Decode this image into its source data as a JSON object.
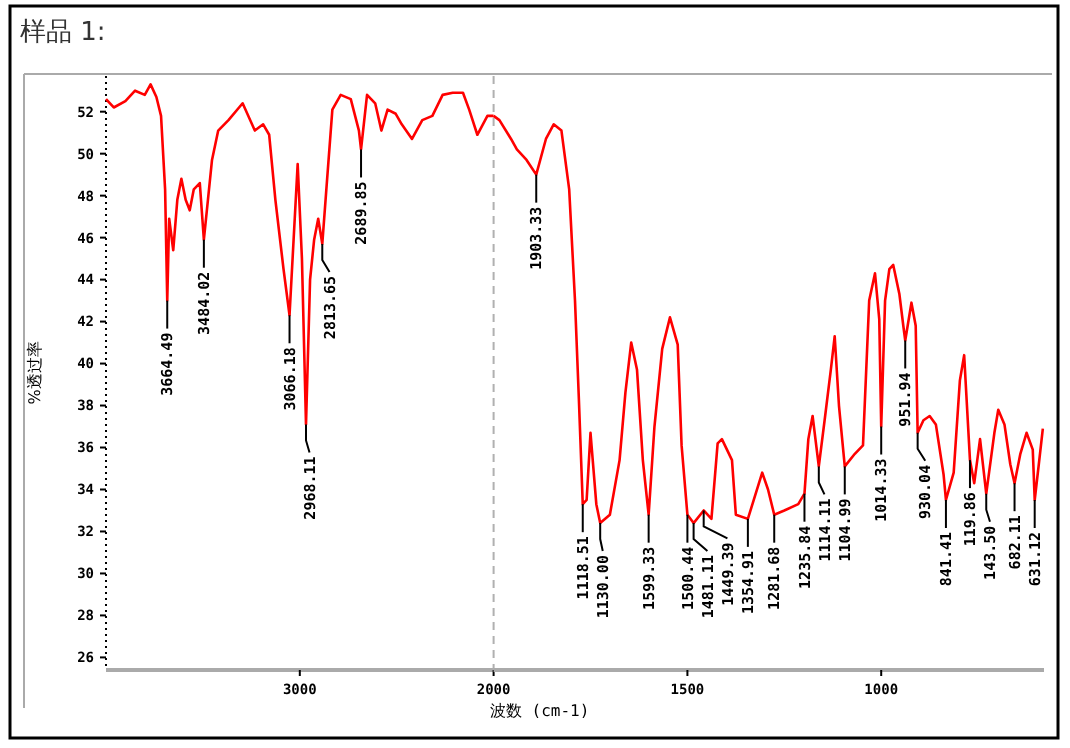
{
  "chart_data": [
    {
      "type": "line",
      "title": "样品 1:",
      "ylabel": "%透过率",
      "xlim": [
        4000,
        2000
      ],
      "xticks": [
        3000,
        2000
      ],
      "ylim": [
        25.4,
        53.7
      ],
      "yticks": [
        26,
        28,
        30,
        32,
        34,
        36,
        38,
        40,
        42,
        44,
        46,
        48,
        50,
        52
      ],
      "series": [
        {
          "color": "#ff0000",
          "x": [
            4000,
            3960,
            3900,
            3850,
            3800,
            3770,
            3740,
            3716,
            3695,
            3684,
            3674,
            3653,
            3632,
            3611,
            3589,
            3568,
            3547,
            3516,
            3495,
            3474,
            3453,
            3421,
            3368,
            3295,
            3232,
            3189,
            3158,
            3126,
            3084,
            3053,
            3032,
            3011,
            2989,
            2968,
            2947,
            2926,
            2905,
            2884,
            2863,
            2832,
            2789,
            2737,
            2695,
            2684,
            2653,
            2611,
            2579,
            2547,
            2505,
            2474,
            2421,
            2368,
            2316,
            2263,
            2211,
            2158,
            2126,
            2084,
            2032,
            2000
          ],
          "values": [
            52.6,
            52.2,
            52.5,
            53.0,
            52.8,
            53.3,
            52.7,
            51.8,
            48.3,
            43.0,
            46.9,
            45.4,
            47.8,
            48.8,
            47.8,
            47.3,
            48.3,
            48.6,
            45.9,
            47.8,
            49.7,
            51.1,
            51.6,
            52.4,
            51.1,
            51.4,
            50.9,
            47.8,
            44.5,
            42.3,
            45.9,
            49.5,
            45.0,
            37.1,
            44.0,
            45.9,
            46.9,
            45.7,
            48.3,
            52.1,
            52.8,
            52.6,
            51.1,
            50.2,
            52.8,
            52.4,
            51.1,
            52.1,
            51.9,
            51.4,
            50.7,
            51.6,
            51.8,
            52.8,
            52.9,
            52.9,
            52.1,
            50.9,
            51.8,
            51.8
          ]
        }
      ],
      "annotations": [
        {
          "text": "3664.49",
          "x": 3684,
          "y": 43.0
        },
        {
          "text": "3484.02",
          "x": 3495,
          "y": 45.9
        },
        {
          "text": "3066.18",
          "x": 3053,
          "y": 42.3
        },
        {
          "text": "2968.11",
          "x": 2968,
          "y": 37.1
        },
        {
          "text": "2813.65",
          "x": 2884,
          "y": 45.7
        },
        {
          "text": "2689.85",
          "x": 2684,
          "y": 50.2
        }
      ]
    },
    {
      "type": "line",
      "xlabel": "波数 (cm-1)",
      "tick_labels": "x",
      "xlim": [
        2000,
        580
      ],
      "xticks": [
        1500,
        1000
      ],
      "ylim": [
        25.4,
        53.7
      ],
      "yticks": [
        26,
        28,
        30,
        32,
        34,
        36,
        38,
        40,
        42,
        44,
        46,
        48,
        50,
        52
      ],
      "ref_lines": [
        {
          "axis": "x",
          "value": 2000,
          "color": "#b0b0b0",
          "line_style": "dashed"
        }
      ],
      "series": [
        {
          "color": "#ff0000",
          "x": [
            2000,
            1985,
            1955,
            1940,
            1915,
            1890,
            1865,
            1845,
            1825,
            1805,
            1790,
            1780,
            1770,
            1760,
            1750,
            1735,
            1725,
            1700,
            1675,
            1660,
            1645,
            1630,
            1615,
            1600,
            1585,
            1565,
            1545,
            1525,
            1515,
            1500,
            1484,
            1458,
            1438,
            1422,
            1411,
            1385,
            1375,
            1344,
            1307,
            1292,
            1276,
            1250,
            1214,
            1198,
            1188,
            1177,
            1161,
            1146,
            1130,
            1120,
            1109,
            1094,
            1068,
            1047,
            1031,
            1016,
            1005,
            1000,
            990,
            979,
            969,
            953,
            943,
            938,
            922,
            911,
            906,
            891,
            875,
            859,
            839,
            833,
            813,
            797,
            786,
            771,
            760,
            745,
            729,
            708,
            698,
            682,
            667,
            656,
            641,
            625,
            609,
            604,
            594,
            583
          ],
          "values": [
            51.8,
            51.6,
            50.7,
            50.2,
            49.7,
            49.0,
            50.7,
            51.4,
            51.1,
            48.3,
            43.0,
            38.3,
            33.3,
            33.5,
            36.7,
            33.3,
            32.4,
            32.8,
            35.4,
            38.6,
            41.0,
            39.7,
            35.4,
            32.8,
            37.0,
            40.7,
            42.2,
            40.9,
            36.1,
            32.8,
            32.4,
            33.0,
            32.6,
            36.2,
            36.4,
            35.4,
            32.8,
            32.6,
            34.8,
            34.0,
            32.8,
            33.0,
            33.3,
            33.8,
            36.4,
            37.5,
            35.1,
            37.3,
            39.7,
            41.3,
            38.0,
            35.1,
            35.7,
            36.1,
            43.0,
            44.3,
            42.1,
            37.0,
            43.0,
            44.5,
            44.7,
            43.3,
            41.8,
            41.1,
            42.9,
            41.8,
            36.7,
            37.3,
            37.5,
            37.1,
            34.7,
            33.5,
            34.8,
            39.2,
            40.4,
            35.4,
            34.3,
            36.4,
            33.8,
            36.7,
            37.8,
            37.1,
            35.2,
            34.3,
            35.7,
            36.7,
            35.9,
            33.5,
            35.1,
            36.9
          ]
        }
      ],
      "annotations": [
        {
          "text": "1903.33",
          "x": 1890,
          "y": 49.0
        },
        {
          "text": "1118.51",
          "x": 1770,
          "y": 33.3
        },
        {
          "text": "1130.00",
          "x": 1725,
          "y": 32.4
        },
        {
          "text": "1599.33",
          "x": 1600,
          "y": 32.8
        },
        {
          "text": "1500.44",
          "x": 1500,
          "y": 32.8
        },
        {
          "text": "1481.11",
          "x": 1484,
          "y": 32.4
        },
        {
          "text": "1449.39",
          "x": 1458,
          "y": 33.0
        },
        {
          "text": "1354.91",
          "x": 1344,
          "y": 32.6
        },
        {
          "text": "1281.68",
          "x": 1276,
          "y": 32.8
        },
        {
          "text": "1235.84",
          "x": 1198,
          "y": 33.8
        },
        {
          "text": "1114.11",
          "x": 1161,
          "y": 35.1
        },
        {
          "text": "1104.99",
          "x": 1094,
          "y": 35.1
        },
        {
          "text": "1014.33",
          "x": 1000,
          "y": 37.0
        },
        {
          "text": "951.94",
          "x": 938,
          "y": 41.1
        },
        {
          "text": "930.04",
          "x": 906,
          "y": 36.7
        },
        {
          "text": "841.41",
          "x": 833,
          "y": 33.5
        },
        {
          "text": "119.86",
          "x": 771,
          "y": 35.4
        },
        {
          "text": "143.50",
          "x": 729,
          "y": 33.8
        },
        {
          "text": "682.11",
          "x": 656,
          "y": 34.3
        },
        {
          "text": "631.12",
          "x": 604,
          "y": 33.5
        }
      ]
    }
  ]
}
